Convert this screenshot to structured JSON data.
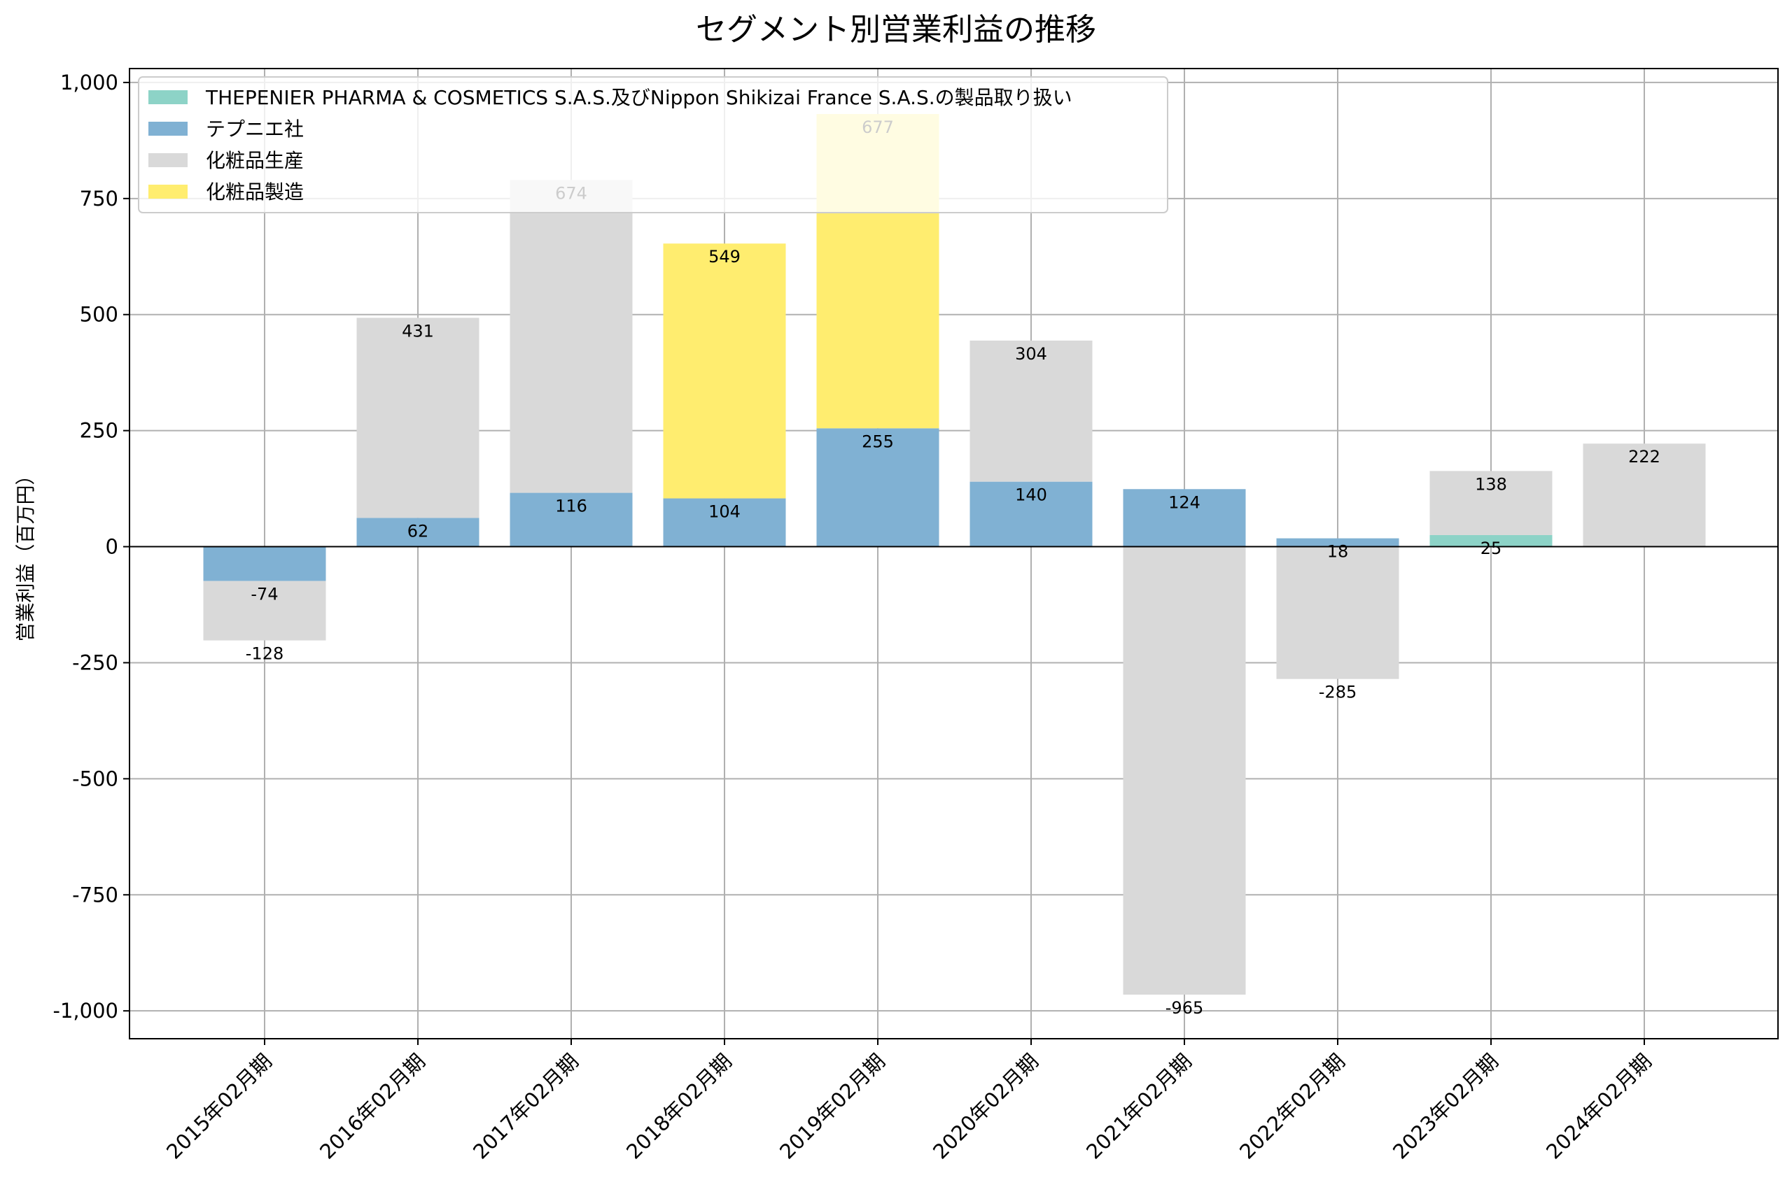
{
  "chart_data": {
    "type": "bar",
    "stacked": true,
    "title": "セグメント別営業利益の推移",
    "xlabel": "",
    "ylabel": "営業利益（百万円）",
    "ylim": [
      -1060,
      1030
    ],
    "yticks": [
      1000,
      750,
      500,
      250,
      0,
      -250,
      -500,
      -750,
      -1000
    ],
    "ytick_labels": [
      "1,000",
      "750",
      "500",
      "250",
      "0",
      "-250",
      "-500",
      "-750",
      "-1,000"
    ],
    "grid": true,
    "legend_position": "top-left",
    "categories": [
      "2015年02月期",
      "2016年02月期",
      "2017年02月期",
      "2018年02月期",
      "2019年02月期",
      "2020年02月期",
      "2021年02月期",
      "2022年02月期",
      "2023年02月期",
      "2024年02月期"
    ],
    "series": [
      {
        "name": "THEPENIER PHARMA & COSMETICS S.A.S.及びNippon Shikizai France S.A.S.の製品取り扱い",
        "color": "#8dd3c7",
        "values": [
          null,
          null,
          null,
          null,
          null,
          null,
          null,
          null,
          25,
          null
        ]
      },
      {
        "name": "テプニエ社",
        "color": "#80b1d3",
        "values": [
          -74,
          62,
          116,
          104,
          255,
          140,
          124,
          18,
          null,
          null
        ]
      },
      {
        "name": "化粧品生産",
        "color": "#d9d9d9",
        "values": [
          -128,
          431,
          674,
          null,
          null,
          304,
          -965,
          -285,
          138,
          222
        ]
      },
      {
        "name": "化粧品製造",
        "color": "#ffed6f",
        "values": [
          null,
          null,
          null,
          549,
          677,
          null,
          null,
          null,
          null,
          null
        ]
      }
    ]
  }
}
